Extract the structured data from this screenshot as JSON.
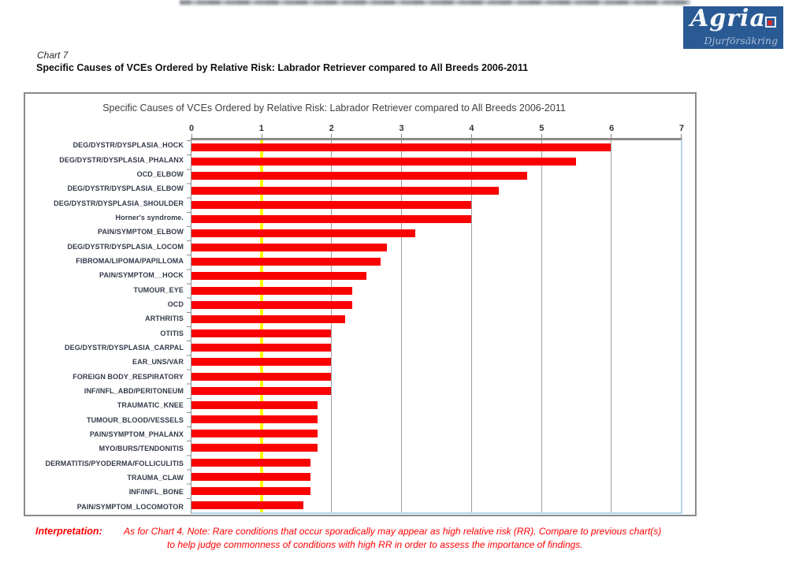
{
  "logo": {
    "brand": "Agria",
    "subtitle": "Djurförsäkring",
    "brand_color": "#2a5a94"
  },
  "header": {
    "chart_label": "Chart 7",
    "title": "Specific Causes of VCEs Ordered by Relative Risk: Labrador Retriever compared to All Breeds 2006-2011"
  },
  "chart_data": {
    "type": "bar",
    "orientation": "horizontal",
    "title": "Specific Causes of VCEs Ordered by Relative Risk: Labrador Retriever compared to All Breeds 2006-2011",
    "categories": [
      "DEG/DYSTR/DYSPLASIA_HOCK",
      "DEG/DYSTR/DYSPLASIA_PHALANX",
      "OCD_ELBOW",
      "DEG/DYSTR/DYSPLASIA_ELBOW",
      "DEG/DYSTR/DYSPLASIA_SHOULDER",
      "Horner's syndrome.",
      "PAIN/SYMPTOM_ELBOW",
      "DEG/DYSTR/DYSPLASIA_LOCOM",
      "FIBROMA/LIPOMA/PAPILLOMA",
      "PAIN/SYMPTOM__HOCK",
      "TUMOUR_EYE",
      "OCD",
      "ARTHRITIS",
      "OTITIS",
      "DEG/DYSTR/DYSPLASIA_CARPAL",
      "EAR_UNS/VAR",
      "FOREIGN BODY_RESPIRATORY",
      "INF/INFL_ABD/PERITONEUM",
      "TRAUMATIC_KNEE",
      "TUMOUR_BLOOD/VESSELS",
      "PAIN/SYMPTOM_PHALANX",
      "MYO/BURS/TENDONITIS",
      "DERMATITIS/PYODERMA/FOLLICULITIS",
      "TRAUMA_CLAW",
      "INF/INFL_BONE",
      "PAIN/SYMPTOM_LOCOMOTOR"
    ],
    "values": [
      6.0,
      5.5,
      4.8,
      4.4,
      4.0,
      4.0,
      3.2,
      2.8,
      2.7,
      2.5,
      2.3,
      2.3,
      2.2,
      2.0,
      2.0,
      2.0,
      2.0,
      2.0,
      1.8,
      1.8,
      1.8,
      1.8,
      1.7,
      1.7,
      1.7,
      1.6
    ],
    "xlabel": "",
    "ylabel": "",
    "xlim": [
      0,
      7
    ],
    "ticks": [
      0,
      1,
      2,
      3,
      4,
      5,
      6,
      7
    ],
    "grid": true,
    "legend": false,
    "reference_line_x": 1,
    "bar_color": "#fa0202",
    "reference_line_color": "#ffff00"
  },
  "interpretation": {
    "label": "Interpretation:",
    "note_line1": "As for Chart 4.  Note: Rare conditions that occur sporadically may appear as high relative risk (RR).  Compare to previous chart(s)",
    "note_line2": "to help judge commonness of conditions with high RR in order to assess the importance of findings."
  }
}
